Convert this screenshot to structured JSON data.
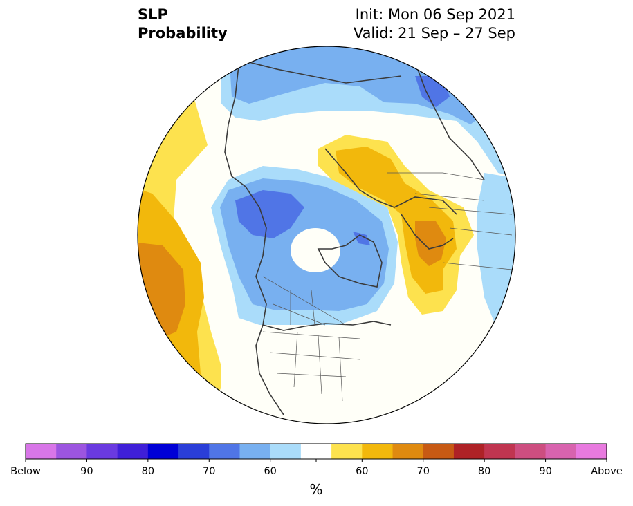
{
  "header": {
    "variable": "SLP",
    "product": "Probability",
    "init": "Init: Mon 06 Sep 2021",
    "valid": "Valid: 21 Sep – 27 Sep"
  },
  "colorbar": {
    "units": "%",
    "labels": [
      "Below",
      "90",
      "80",
      "70",
      "60",
      "60",
      "70",
      "80",
      "90",
      "Above"
    ],
    "colors": [
      "#d876e8",
      "#9c55e0",
      "#6a3ae0",
      "#3f1fd8",
      "#0000d6",
      "#2a3ed8",
      "#5075e6",
      "#78b0f0",
      "#aadcfa",
      "#ffffff",
      "#fde24e",
      "#f2b80c",
      "#df8a10",
      "#c75a14",
      "#ae2226",
      "#c03550",
      "#cd4e80",
      "#d863ae",
      "#e87adf"
    ]
  },
  "map": {
    "projection": "north-polar-stereographic",
    "palette": {
      "ocean_background": "#fffff8",
      "coastline": "#3a3a3a",
      "border": "#555555",
      "above_60": "#fde24e",
      "above_65": "#f2b80c",
      "above_70": "#df8a10",
      "below_55": "#aadcfa",
      "below_60": "#78b0f0",
      "below_65": "#5075e6"
    }
  }
}
